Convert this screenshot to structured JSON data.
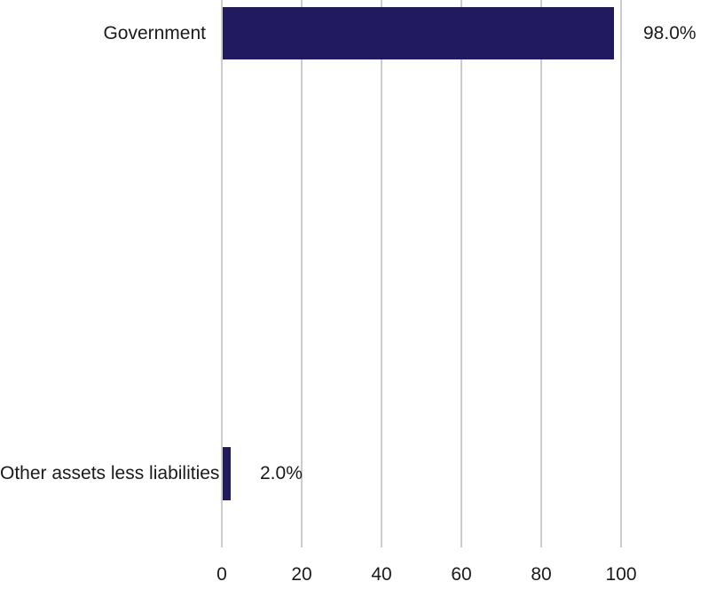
{
  "chart_data": {
    "type": "bar",
    "orientation": "horizontal",
    "title": "",
    "xlabel": "",
    "ylabel": "",
    "categories": [
      "Government",
      "Other assets less liabilities"
    ],
    "values": [
      98.0,
      2.0
    ],
    "value_labels": [
      "98.0%",
      "2.0%"
    ],
    "x_ticks": [
      "0",
      "20",
      "40",
      "60",
      "80",
      "100"
    ],
    "xlim": [
      0,
      100
    ],
    "grid": "vertical-gridlines-on",
    "legend": "none",
    "colors": {
      "bar": "#211a61",
      "gridline": "#cccccc",
      "text": "#1a1a1a",
      "background": "#ffffff"
    }
  }
}
